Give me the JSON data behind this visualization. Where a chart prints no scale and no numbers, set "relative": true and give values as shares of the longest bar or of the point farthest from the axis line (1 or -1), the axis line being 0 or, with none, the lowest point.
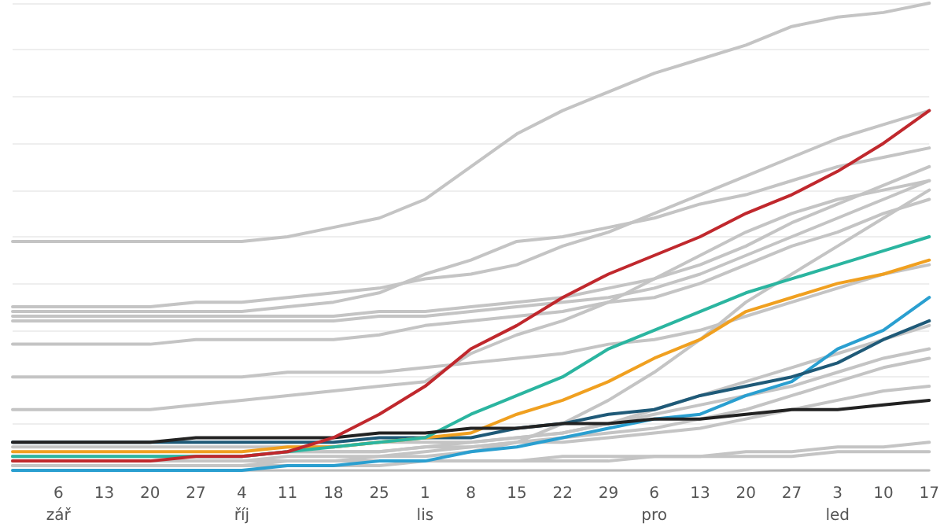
{
  "chart_data": {
    "type": "line",
    "relative": true,
    "grid": "y",
    "marker": "none",
    "line_style": "solid",
    "categories": [
      null,
      "6\nzář",
      "13",
      "20",
      "27",
      "4\nříj",
      "11",
      "18",
      "25",
      "1\nlis",
      "8",
      "15",
      "22",
      "29",
      "6\npro",
      "13",
      "20",
      "27",
      "3\nled",
      "10",
      "17"
    ],
    "series": [
      {
        "color": "#c4c4c4",
        "values": [
          0.49,
          0.49,
          0.49,
          0.49,
          0.49,
          0.49,
          0.5,
          0.52,
          0.54,
          0.58,
          0.65,
          0.72,
          0.77,
          0.81,
          0.85,
          0.88,
          0.91,
          0.95,
          0.97,
          0.98,
          1.0
        ]
      },
      {
        "color": "#c4c4c4",
        "values": [
          0.35,
          0.35,
          0.35,
          0.35,
          0.36,
          0.36,
          0.37,
          0.38,
          0.39,
          0.41,
          0.42,
          0.44,
          0.48,
          0.51,
          0.55,
          0.59,
          0.63,
          0.67,
          0.71,
          0.74,
          0.77
        ]
      },
      {
        "color": "#c4c4c4",
        "values": [
          0.34,
          0.34,
          0.34,
          0.34,
          0.34,
          0.34,
          0.35,
          0.36,
          0.38,
          0.42,
          0.45,
          0.49,
          0.5,
          0.52,
          0.54,
          0.57,
          0.59,
          0.62,
          0.65,
          0.67,
          0.69
        ]
      },
      {
        "color": "#c4c4c4",
        "values": [
          0.33,
          0.33,
          0.33,
          0.33,
          0.33,
          0.33,
          0.33,
          0.33,
          0.34,
          0.34,
          0.35,
          0.36,
          0.37,
          0.39,
          0.41,
          0.44,
          0.48,
          0.53,
          0.57,
          0.61,
          0.65
        ]
      },
      {
        "color": "#c4c4c4",
        "values": [
          0.32,
          0.32,
          0.32,
          0.32,
          0.32,
          0.32,
          0.32,
          0.32,
          0.33,
          0.33,
          0.34,
          0.35,
          0.36,
          0.37,
          0.39,
          0.42,
          0.46,
          0.5,
          0.54,
          0.58,
          0.62
        ]
      },
      {
        "color": "#c4c4c4",
        "values": [
          0.27,
          0.27,
          0.27,
          0.27,
          0.28,
          0.28,
          0.28,
          0.28,
          0.29,
          0.31,
          0.32,
          0.33,
          0.34,
          0.36,
          0.37,
          0.4,
          0.44,
          0.48,
          0.51,
          0.55,
          0.58
        ]
      },
      {
        "color": "#c4c4c4",
        "values": [
          0.2,
          0.2,
          0.2,
          0.2,
          0.2,
          0.2,
          0.21,
          0.21,
          0.21,
          0.22,
          0.23,
          0.24,
          0.25,
          0.27,
          0.28,
          0.3,
          0.33,
          0.36,
          0.39,
          0.42,
          0.44
        ]
      },
      {
        "color": "#c4c4c4",
        "values": [
          0.13,
          0.13,
          0.13,
          0.13,
          0.14,
          0.15,
          0.16,
          0.17,
          0.18,
          0.19,
          0.25,
          0.29,
          0.32,
          0.36,
          0.41,
          0.46,
          0.51,
          0.55,
          0.58,
          0.6,
          0.62
        ]
      },
      {
        "color": "#c4c4c4",
        "values": [
          0.02,
          0.02,
          0.02,
          0.02,
          0.02,
          0.02,
          0.02,
          0.02,
          0.03,
          0.03,
          0.04,
          0.06,
          0.1,
          0.15,
          0.21,
          0.28,
          0.36,
          0.42,
          0.48,
          0.54,
          0.6
        ]
      },
      {
        "color": "#c4c4c4",
        "values": [
          0.05,
          0.05,
          0.05,
          0.05,
          0.05,
          0.05,
          0.05,
          0.05,
          0.06,
          0.06,
          0.06,
          0.07,
          0.08,
          0.1,
          0.13,
          0.16,
          0.19,
          0.22,
          0.25,
          0.28,
          0.31
        ]
      },
      {
        "color": "#c4c4c4",
        "values": [
          0.03,
          0.03,
          0.03,
          0.03,
          0.03,
          0.03,
          0.04,
          0.04,
          0.04,
          0.05,
          0.06,
          0.07,
          0.08,
          0.1,
          0.12,
          0.14,
          0.16,
          0.18,
          0.21,
          0.24,
          0.26
        ]
      },
      {
        "color": "#c4c4c4",
        "values": [
          0.02,
          0.02,
          0.02,
          0.02,
          0.02,
          0.02,
          0.03,
          0.03,
          0.03,
          0.04,
          0.05,
          0.06,
          0.07,
          0.08,
          0.09,
          0.11,
          0.13,
          0.16,
          0.19,
          0.22,
          0.24
        ]
      },
      {
        "color": "#c4c4c4",
        "values": [
          0.03,
          0.03,
          0.03,
          0.03,
          0.03,
          0.03,
          0.04,
          0.04,
          0.04,
          0.05,
          0.05,
          0.06,
          0.06,
          0.07,
          0.08,
          0.09,
          0.11,
          0.13,
          0.15,
          0.17,
          0.18
        ]
      },
      {
        "color": "#c4c4c4",
        "values": [
          0.01,
          0.01,
          0.01,
          0.01,
          0.01,
          0.01,
          0.02,
          0.02,
          0.02,
          0.02,
          0.02,
          0.02,
          0.03,
          0.03,
          0.03,
          0.03,
          0.04,
          0.04,
          0.05,
          0.05,
          0.06
        ]
      },
      {
        "color": "#c4c4c4",
        "values": [
          0.01,
          0.01,
          0.01,
          0.01,
          0.01,
          0.01,
          0.01,
          0.01,
          0.01,
          0.02,
          0.02,
          0.02,
          0.02,
          0.02,
          0.03,
          0.03,
          0.03,
          0.03,
          0.04,
          0.04,
          0.04
        ]
      },
      {
        "color": "#2a9fd0",
        "values": [
          0.0,
          0.0,
          0.0,
          0.0,
          0.0,
          0.0,
          0.01,
          0.01,
          0.02,
          0.02,
          0.04,
          0.05,
          0.07,
          0.09,
          0.11,
          0.12,
          0.16,
          0.19,
          0.26,
          0.3,
          0.37
        ]
      },
      {
        "color": "#1f5a78",
        "values": [
          0.06,
          0.06,
          0.06,
          0.06,
          0.06,
          0.06,
          0.06,
          0.06,
          0.07,
          0.07,
          0.07,
          0.09,
          0.1,
          0.12,
          0.13,
          0.16,
          0.18,
          0.2,
          0.23,
          0.28,
          0.32
        ]
      },
      {
        "color": "#f0a020",
        "values": [
          0.04,
          0.04,
          0.04,
          0.04,
          0.04,
          0.04,
          0.05,
          0.05,
          0.06,
          0.07,
          0.08,
          0.12,
          0.15,
          0.19,
          0.24,
          0.28,
          0.34,
          0.37,
          0.4,
          0.42,
          0.45
        ]
      },
      {
        "color": "#2bb5a0",
        "values": [
          0.03,
          0.03,
          0.03,
          0.03,
          0.03,
          0.03,
          0.04,
          0.05,
          0.06,
          0.07,
          0.12,
          0.16,
          0.2,
          0.26,
          0.3,
          0.34,
          0.38,
          0.41,
          0.44,
          0.47,
          0.5
        ]
      },
      {
        "color": "#222222",
        "values": [
          0.06,
          0.06,
          0.06,
          0.06,
          0.07,
          0.07,
          0.07,
          0.07,
          0.08,
          0.08,
          0.09,
          0.09,
          0.1,
          0.1,
          0.11,
          0.11,
          0.12,
          0.13,
          0.13,
          0.14,
          0.15
        ]
      },
      {
        "color": "#c0282d",
        "values": [
          0.02,
          0.02,
          0.02,
          0.02,
          0.03,
          0.03,
          0.04,
          0.07,
          0.12,
          0.18,
          0.26,
          0.31,
          0.37,
          0.42,
          0.46,
          0.5,
          0.55,
          0.59,
          0.64,
          0.7,
          0.77
        ]
      }
    ]
  }
}
